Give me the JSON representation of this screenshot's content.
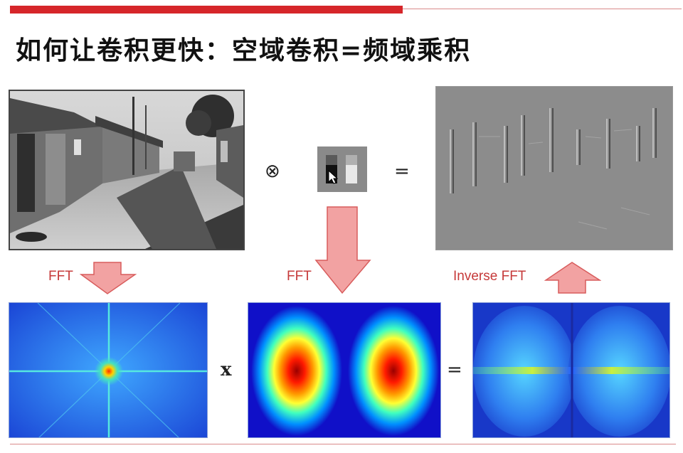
{
  "slide": {
    "title": "如何让卷积更快：空域卷积=频域乘积",
    "operators": {
      "convolve": "⊗",
      "equals_top": "=",
      "multiply": "x",
      "equals_bottom": "="
    },
    "labels": {
      "fft_image": "FFT",
      "fft_kernel": "FFT",
      "inverse_fft": "Inverse FFT"
    },
    "colors": {
      "accent_bar": "#d6262a",
      "arrow_fill": "#f2a2a2",
      "arrow_stroke": "#d85c5c",
      "label_text": "#c63a3a"
    }
  }
}
